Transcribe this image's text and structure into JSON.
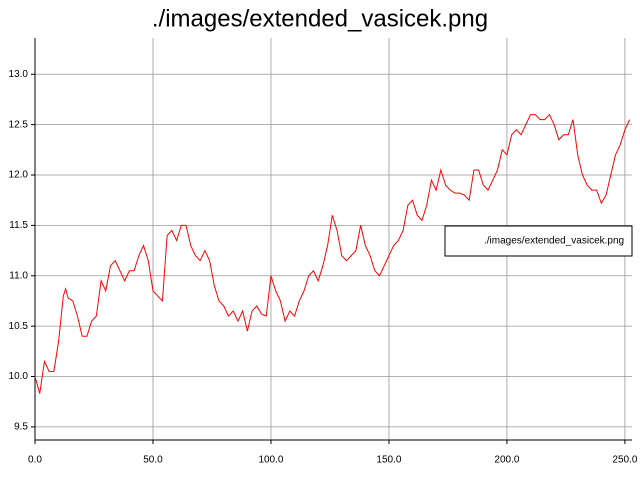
{
  "chart_data": {
    "type": "line",
    "title": "./images/extended_vasicek.png",
    "x": [
      0,
      2,
      4,
      6,
      8,
      10,
      12,
      13,
      14,
      16,
      18,
      20,
      22,
      24,
      26,
      28,
      30,
      32,
      34,
      36,
      38,
      40,
      42,
      44,
      46,
      48,
      50,
      52,
      54,
      56,
      58,
      60,
      62,
      64,
      66,
      68,
      70,
      72,
      74,
      76,
      78,
      80,
      82,
      84,
      86,
      88,
      90,
      92,
      94,
      96,
      98,
      100,
      102,
      104,
      106,
      108,
      110,
      112,
      114,
      116,
      118,
      120,
      122,
      124,
      126,
      128,
      130,
      132,
      134,
      136,
      138,
      140,
      142,
      144,
      146,
      148,
      150,
      152,
      154,
      156,
      158,
      160,
      162,
      164,
      166,
      168,
      170,
      172,
      174,
      176,
      178,
      180,
      182,
      184,
      186,
      188,
      190,
      192,
      194,
      196,
      198,
      200,
      202,
      204,
      206,
      208,
      210,
      212,
      214,
      216,
      218,
      220,
      222,
      224,
      226,
      228,
      230,
      232,
      234,
      236,
      238,
      240,
      242,
      244,
      246,
      248,
      250,
      252
    ],
    "series": [
      {
        "name": "./images/extended_vasicek.png",
        "color": "#ff0000",
        "values": [
          10.0,
          9.83,
          10.15,
          10.05,
          10.05,
          10.35,
          10.8,
          10.87,
          10.78,
          10.75,
          10.6,
          10.4,
          10.4,
          10.55,
          10.6,
          10.95,
          10.85,
          11.1,
          11.15,
          11.05,
          10.95,
          11.05,
          11.05,
          11.2,
          11.3,
          11.15,
          10.85,
          10.8,
          10.75,
          11.4,
          11.45,
          11.35,
          11.5,
          11.5,
          11.3,
          11.2,
          11.15,
          11.25,
          11.15,
          10.9,
          10.75,
          10.7,
          10.6,
          10.65,
          10.55,
          10.65,
          10.45,
          10.65,
          10.7,
          10.62,
          10.6,
          11.0,
          10.85,
          10.75,
          10.55,
          10.65,
          10.6,
          10.75,
          10.85,
          11.0,
          11.05,
          10.95,
          11.1,
          11.3,
          11.6,
          11.45,
          11.2,
          11.15,
          11.2,
          11.25,
          11.5,
          11.3,
          11.2,
          11.05,
          11.0,
          11.1,
          11.2,
          11.3,
          11.35,
          11.45,
          11.7,
          11.75,
          11.6,
          11.55,
          11.7,
          11.95,
          11.85,
          12.05,
          11.9,
          11.85,
          11.82,
          11.82,
          11.8,
          11.75,
          12.05,
          12.05,
          11.9,
          11.85,
          11.95,
          12.05,
          12.25,
          12.2,
          12.4,
          12.45,
          12.4,
          12.5,
          12.6,
          12.6,
          12.55,
          12.55,
          12.6,
          12.5,
          12.35,
          12.4,
          12.4,
          12.55,
          12.2,
          12.0,
          11.9,
          11.85,
          11.85,
          11.72,
          11.8,
          12.0,
          12.2,
          12.3,
          12.45,
          12.55
        ]
      }
    ],
    "xlim": [
      0,
      253
    ],
    "ylim": [
      9.37,
      13.36
    ],
    "xticks": [
      {
        "value": 0,
        "label": "0.0"
      },
      {
        "value": 50,
        "label": "50.0"
      },
      {
        "value": 100,
        "label": "100.0"
      },
      {
        "value": 150,
        "label": "150.0"
      },
      {
        "value": 200,
        "label": "200.0"
      },
      {
        "value": 250,
        "label": "250.0"
      }
    ],
    "yticks": [
      9.5,
      {
        "value": 10,
        "label": "10.0"
      },
      10.5,
      {
        "value": 11,
        "label": "11.0"
      },
      11.5,
      {
        "value": 12,
        "label": "12.0"
      },
      12.5,
      {
        "value": 13,
        "label": "13.0"
      }
    ],
    "grid": true,
    "legend": "right"
  }
}
